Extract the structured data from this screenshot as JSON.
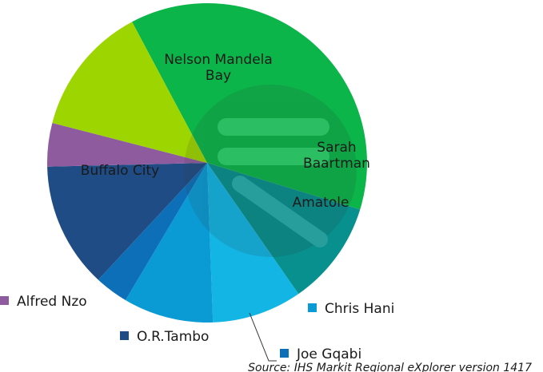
{
  "chart_data": {
    "type": "pie",
    "title": "",
    "slices": [
      {
        "label": "Nelson Mandela Bay",
        "value": 37.5,
        "color": "#0bb54a",
        "inside_label": [
          "Nelson Mandela",
          "Bay"
        ]
      },
      {
        "label": "Sarah Baartman",
        "value": 10.6,
        "color": "#07908d",
        "inside_label": [
          "Sarah",
          "Baartman"
        ]
      },
      {
        "label": "Amatole",
        "value": 9.1,
        "color": "#12b5e3",
        "inside_label": [
          "Amatole"
        ]
      },
      {
        "label": "Chris Hani",
        "value": 9.1,
        "color": "#0a9ad4",
        "legend": true
      },
      {
        "label": "Joe Gqabi",
        "value": 3.4,
        "color": "#0d6fb8",
        "legend": true
      },
      {
        "label": "O.R.Tambo",
        "value": 12.7,
        "color": "#1f4c84",
        "legend": true
      },
      {
        "label": "Alfred Nzo",
        "value": 4.4,
        "color": "#8e5c9e",
        "legend": true
      },
      {
        "label": "Buffalo City",
        "value": 13.2,
        "color": "#9dd500",
        "inside_label": [
          "Buffalo City"
        ]
      }
    ]
  },
  "source": "Source: IHS Markit Regional eXplorer version 1417"
}
